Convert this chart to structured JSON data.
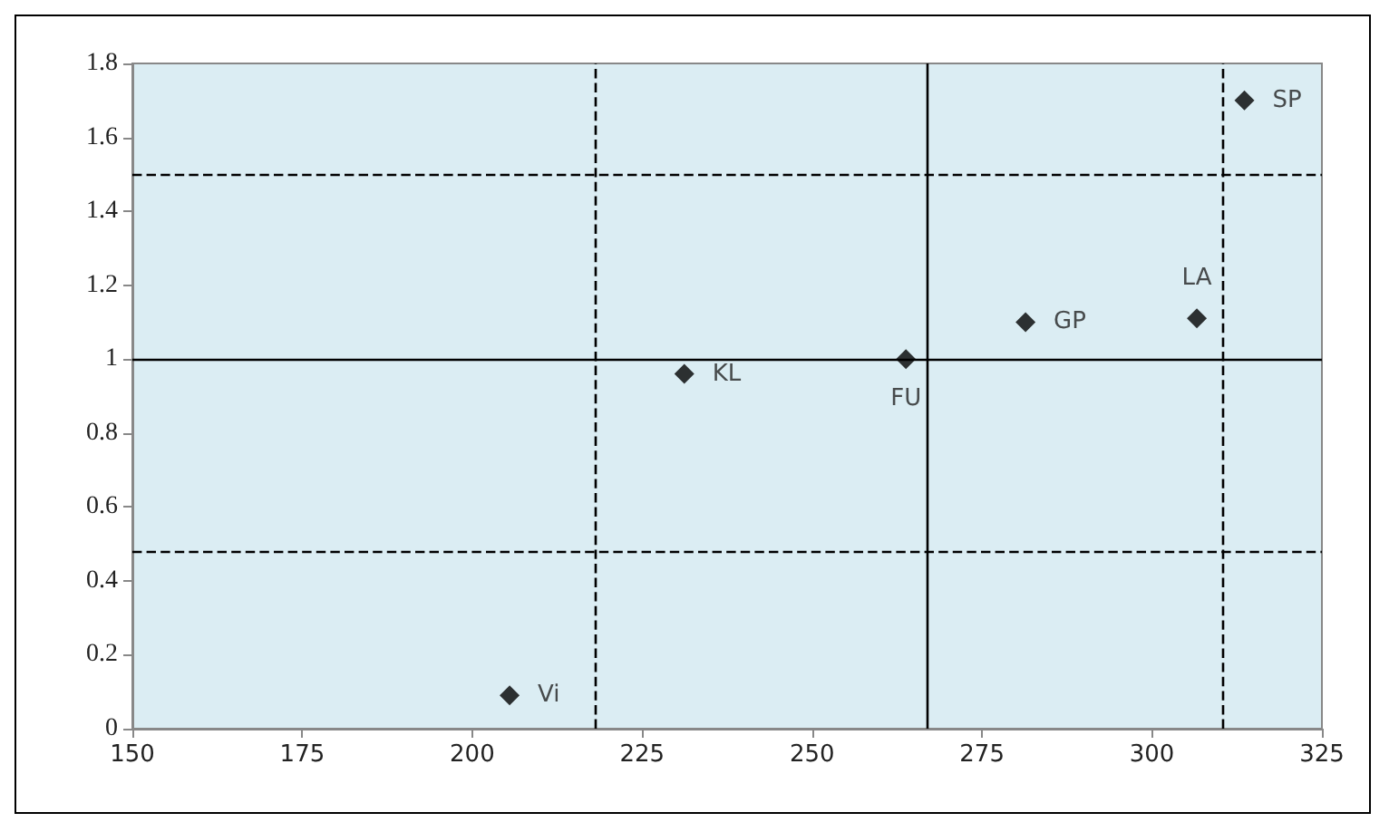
{
  "chart_data": {
    "type": "scatter",
    "marker": "diamond",
    "legend": false,
    "grid": false,
    "xlim": [
      150,
      325
    ],
    "xticks": [
      150,
      175,
      200,
      225,
      250,
      275,
      300,
      325
    ],
    "ylim": [
      0,
      1.8
    ],
    "yticks": [
      0,
      0.2,
      0.4,
      0.6,
      0.8,
      1,
      1.2,
      1.4,
      1.6,
      1.8
    ],
    "series": [
      {
        "name": "Vi",
        "color": "#000000",
        "x": [
          205.5
        ],
        "values": [
          0.09
        ]
      },
      {
        "name": "KL",
        "color": "#000000",
        "x": [
          231.2
        ],
        "values": [
          0.96
        ]
      },
      {
        "name": "FU",
        "color": "#000000",
        "x": [
          263.8
        ],
        "values": [
          1.0
        ]
      },
      {
        "name": "GP",
        "color": "#000000",
        "x": [
          281.4
        ],
        "values": [
          1.1
        ]
      },
      {
        "name": "LA",
        "color": "#000000",
        "x": [
          306.6
        ],
        "values": [
          1.11
        ]
      },
      {
        "name": "SP",
        "color": "#000000",
        "x": [
          313.6
        ],
        "values": [
          1.7
        ]
      }
    ],
    "ref_lines": [
      {
        "axis": "y",
        "value": 1,
        "line_style": "solid",
        "color": "#000000"
      },
      {
        "axis": "y",
        "value": 1.5,
        "line_style": "dashed",
        "color": "#000000"
      },
      {
        "axis": "y",
        "value": 0.48,
        "line_style": "dashed",
        "color": "#000000"
      },
      {
        "axis": "x",
        "value": 218,
        "line_style": "dashed",
        "color": "#000000"
      },
      {
        "axis": "x",
        "value": 267,
        "line_style": "solid",
        "color": "#000000"
      },
      {
        "axis": "x",
        "value": 310.5,
        "line_style": "dashed",
        "color": "#000000"
      }
    ]
  }
}
